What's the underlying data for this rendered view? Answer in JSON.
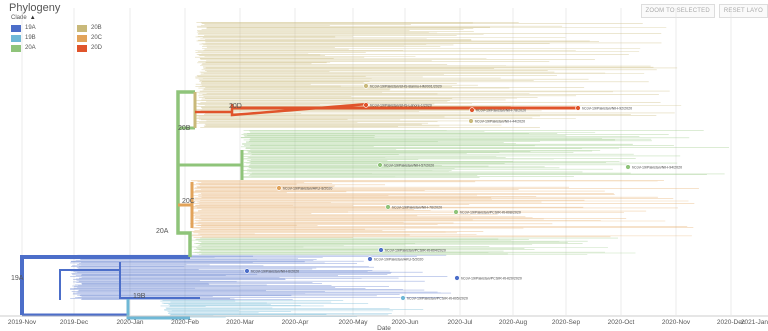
{
  "panel": {
    "title": "Phylogeny"
  },
  "toolbar": {
    "zoom_label": "ZOOM TO SELECTED",
    "reset_label": "RESET LAYO"
  },
  "legend": {
    "title": "Clade",
    "items": [
      {
        "label": "19A",
        "color": "#4c6ec9"
      },
      {
        "label": "20B",
        "color": "#c9b97a"
      },
      {
        "label": "19B",
        "color": "#6fb8d6"
      },
      {
        "label": "20C",
        "color": "#e2a35a"
      },
      {
        "label": "20A",
        "color": "#8fc47a"
      },
      {
        "label": "20D",
        "color": "#e0542b"
      }
    ]
  },
  "tree": {
    "axis_label": "Date",
    "dates": [
      "2019-Nov",
      "2019-Dec",
      "2020-Jan",
      "2020-Feb",
      "2020-Mar",
      "2020-Apr",
      "2020-May",
      "2020-Jun",
      "2020-Jul",
      "2020-Aug",
      "2020-Sep",
      "2020-Oct",
      "2020-Nov",
      "2020-Dec",
      "2021-Jan"
    ],
    "clade_labels": [
      "19A",
      "19B",
      "20A",
      "20B",
      "20C",
      "20D"
    ],
    "tip_labels": [
      "hCoV-19/Pakistan/UHS-Bannu-HM/001/2020",
      "hCoV-19/Pakistan/UHS-Lahore-1/2020",
      "hCoV-19/Pakistan/NIH-78/2020",
      "hCoV-19/Pakistan/NIH-92/2020",
      "hCoV-19/Pakistan/NIH-44/2020",
      "hCoV-19/Pakistan/NIH-57/2020",
      "hCoV-19/Pakistan/NIH-94/2020",
      "hCoV-19/Pakistan/AKU-8/2020",
      "hCoV-19/Pakistan/NIH-76/2020",
      "hCoV-19/Pakistan/PCSIR-KHI08/2020",
      "hCoV-19/Pakistan/PCSIR-KHI04/2020",
      "hCoV-19/Pakistan/AKU-5/2020",
      "hCoV-19/Pakistan/NIH-6/2020",
      "hCoV-19/Pakistan/PCSIR-KHI20/2020",
      "hCoV-19/Pakistan/PCSIR-KHI05/2020"
    ]
  },
  "colors": {
    "19A": "#4c6ec9",
    "19B": "#6fb8d6",
    "20A": "#8fc47a",
    "20B": "#c9b97a",
    "20C": "#e2a35a",
    "20D": "#e0542b"
  }
}
